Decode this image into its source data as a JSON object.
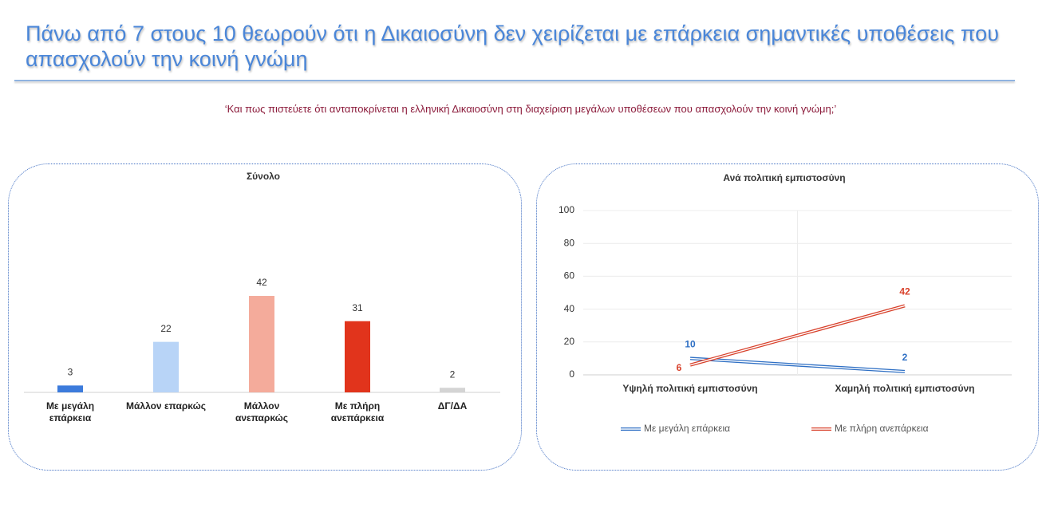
{
  "header": {
    "title": "Πάνω από 7 στους 10 θεωρούν ότι η Δικαιοσύνη δεν χειρίζεται με επάρκεια σημαντικές υποθέσεις που απασχολούν την κοινή γνώμη",
    "question": "‘Και πως πιστεύετε ότι ανταποκρίνεται η ελληνική Δικαιοσύνη στη διαχείριση μεγάλων υποθέσεων που απασχολούν την κοινή γνώμη;’"
  },
  "chart_data": [
    {
      "type": "bar",
      "title": "Σύνολο",
      "categories": [
        "Με μεγάλη επάρκεια",
        "Μάλλον επαρκώς",
        "Μάλλον ανεπαρκώς",
        "Με πλήρη ανεπάρκεια",
        "ΔΓ/ΔΑ"
      ],
      "values": [
        3,
        22,
        42,
        31,
        2
      ],
      "colors": [
        "#3c7bdc",
        "#b8d4f7",
        "#f4ab9b",
        "#e1341c",
        "#d4d4d4"
      ]
    },
    {
      "type": "line",
      "title": "Ανά πολιτική εμπιστοσύνη",
      "categories": [
        "Υψηλή πολιτική εμπιστοσύνη",
        "Χαμηλή πολιτική εμπιστοσύνη"
      ],
      "series": [
        {
          "name": "Με μεγάλη επάρκεια",
          "color": "#2e6fc4",
          "values": [
            10,
            2
          ]
        },
        {
          "name": "Με πλήρη ανεπάρκεια",
          "color": "#d8412b",
          "values": [
            6,
            42
          ]
        }
      ],
      "ylim": [
        0,
        100
      ],
      "yticks": [
        0,
        20,
        40,
        60,
        80,
        100
      ],
      "grid": true,
      "legend": "bottom"
    }
  ]
}
